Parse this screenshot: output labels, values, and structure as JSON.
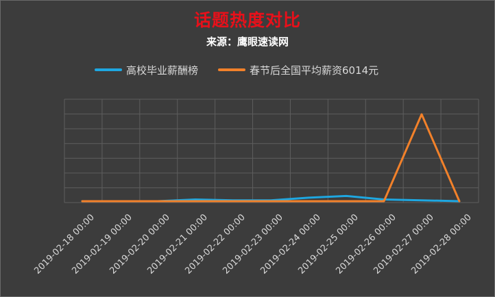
{
  "chart_data": {
    "type": "line",
    "title": "话题热度对比",
    "subtitle": "来源：鹰眼速读网",
    "legend_position": "top",
    "grid": true,
    "ylim": [
      0,
      100
    ],
    "x": [
      "2019-02-18 00:00",
      "2019-02-19 00:00",
      "2019-02-20 00:00",
      "2019-02-21 00:00",
      "2019-02-22 00:00",
      "2019-02-23 00:00",
      "2019-02-24 00:00",
      "2019-02-25 00:00",
      "2019-02-26 00:00",
      "2019-02-27 00:00",
      "2019-02-28 00:00"
    ],
    "series": [
      {
        "name": "高校毕业薪酬榜",
        "color": "#1ea7e1",
        "values": [
          0,
          0,
          0,
          2,
          1,
          1,
          4,
          6,
          2,
          1,
          0
        ]
      },
      {
        "name": "春节后全国平均薪资6014元",
        "color": "#f2812a",
        "values": [
          0,
          0,
          0,
          0,
          0,
          0,
          0,
          0,
          0,
          100,
          0
        ]
      }
    ]
  }
}
